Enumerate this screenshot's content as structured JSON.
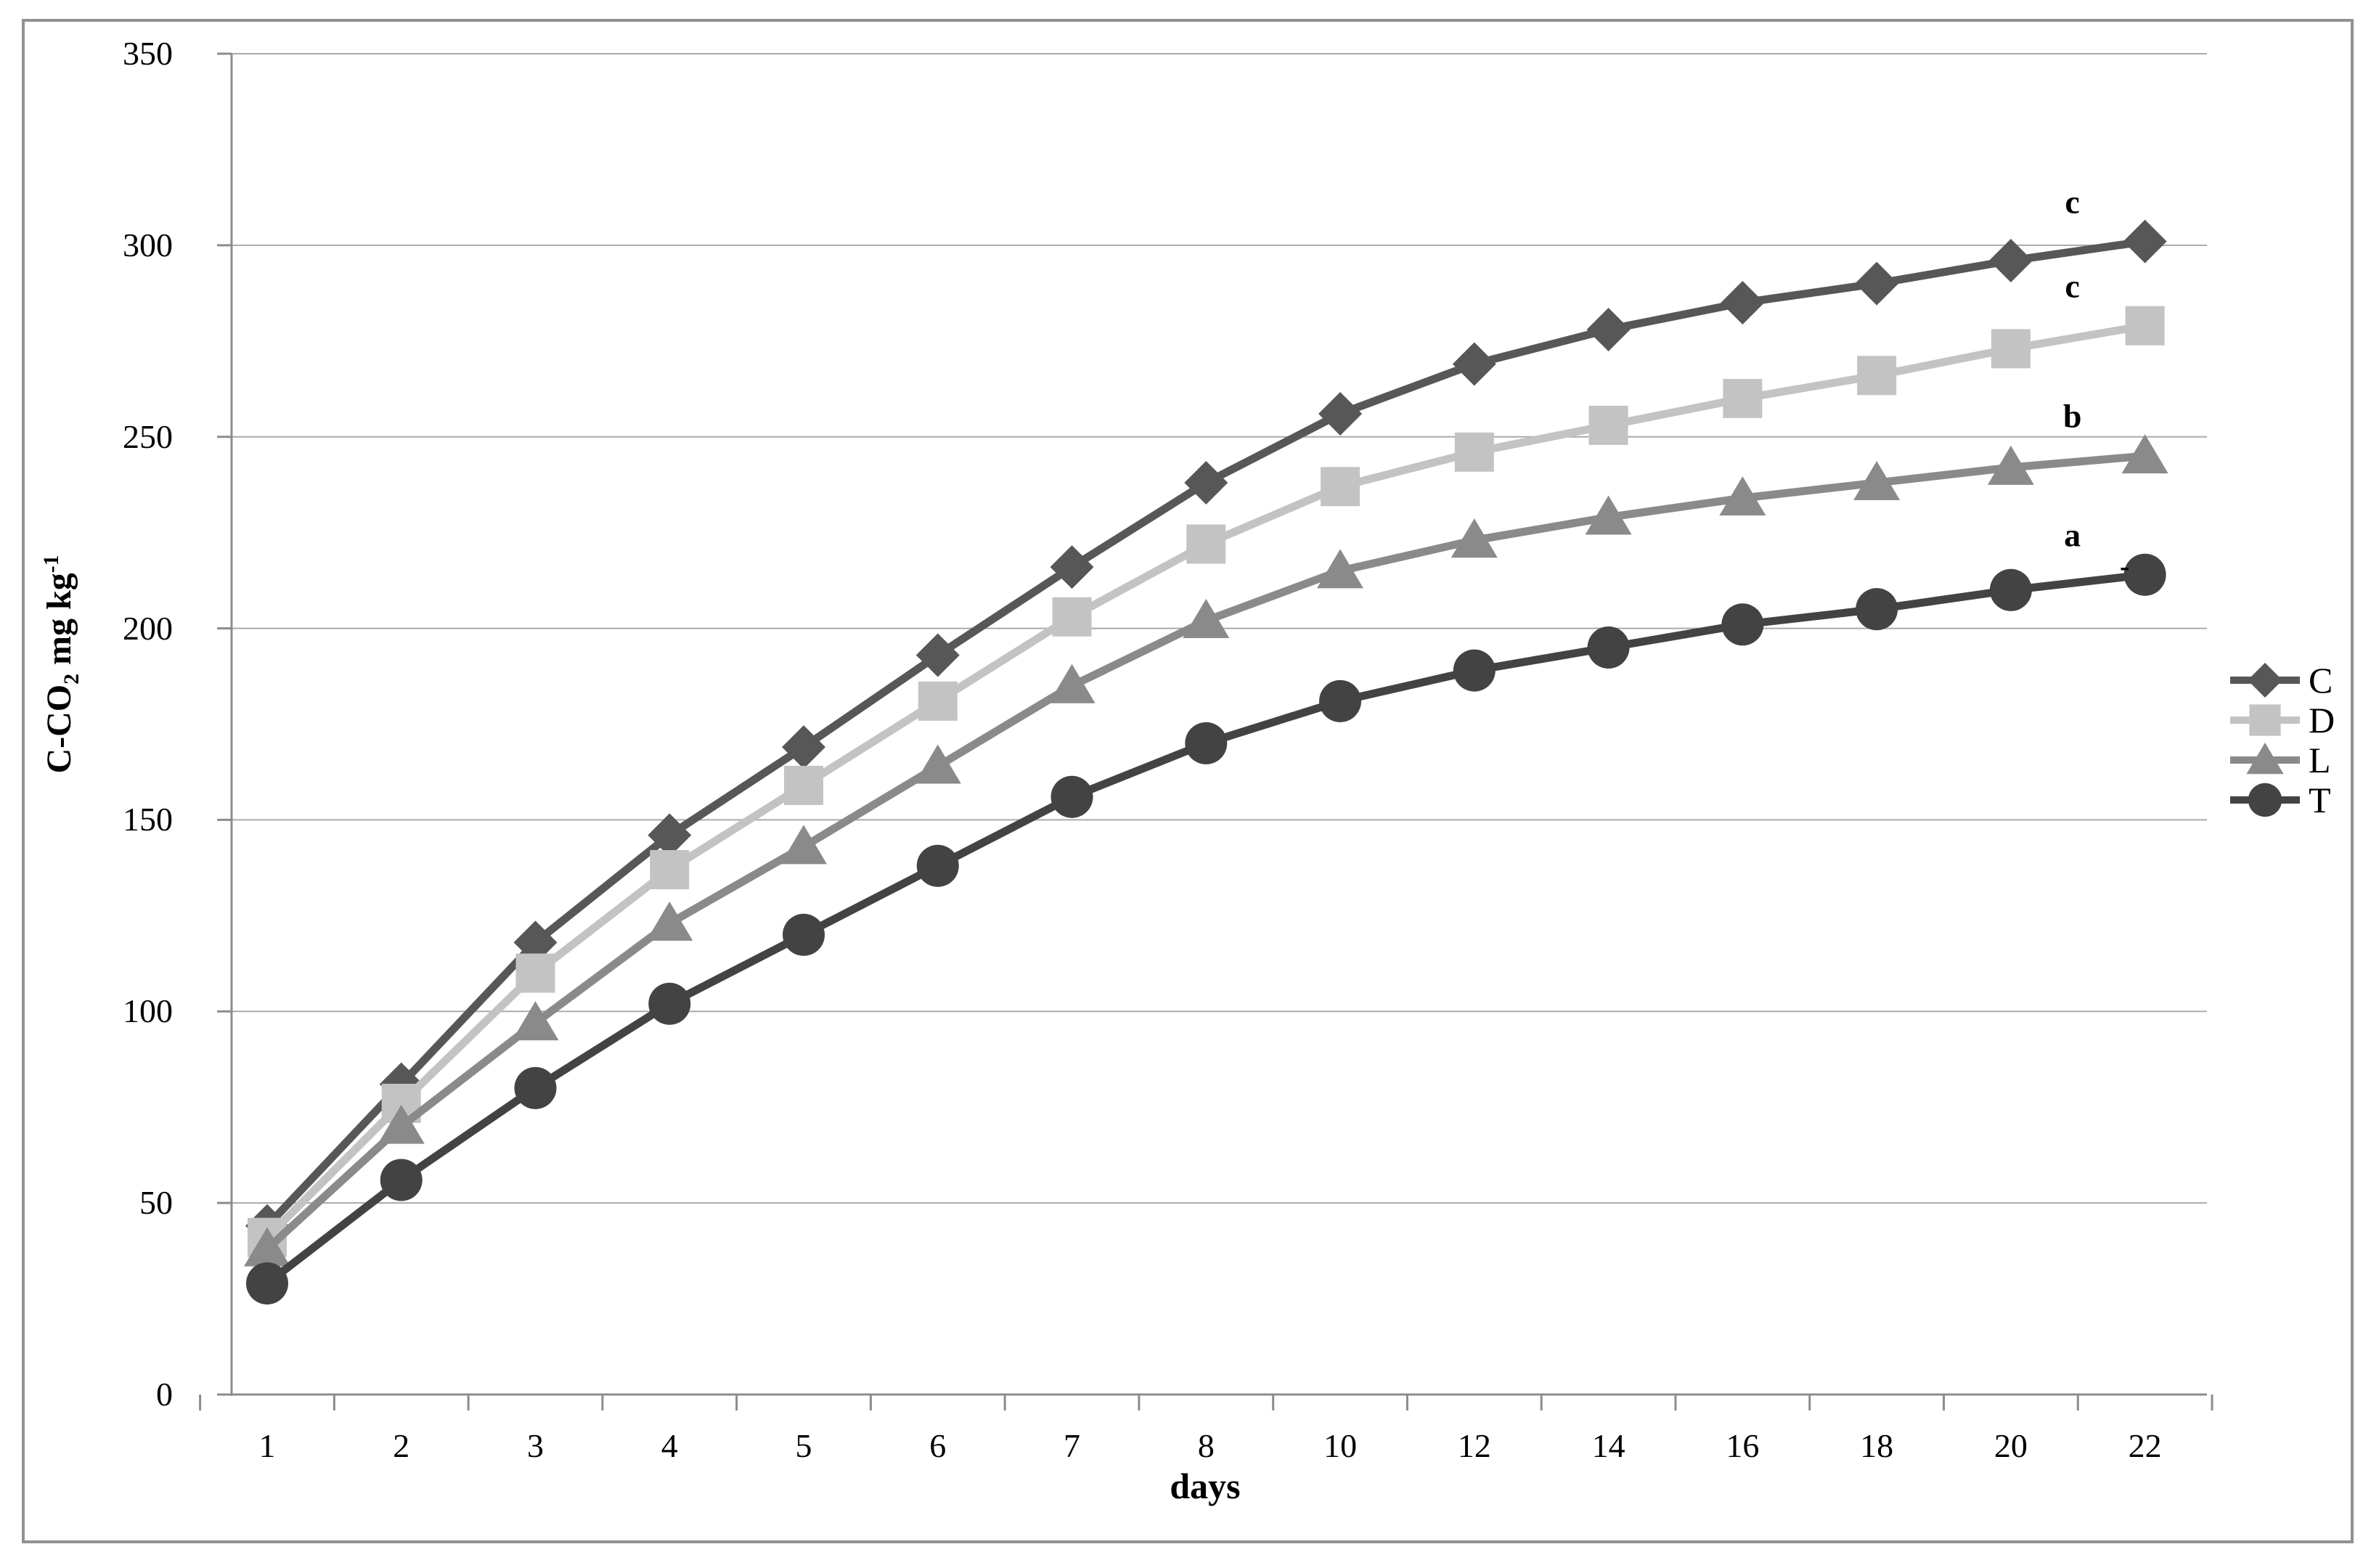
{
  "figure": {
    "background": "#ffffff",
    "frame_border_color": "#919191",
    "gridline_color": "#aaaaaa",
    "axis_color": "#8c8c8c",
    "text_color": "#000000"
  },
  "chart_data": {
    "type": "line",
    "title": "",
    "xlabel": "days",
    "ylabel": "C-CO2 mg kg-1",
    "ylabel_parts": {
      "main": "C-CO",
      "sub": "2",
      "mid": " mg kg",
      "sup": "-1"
    },
    "categories": [
      "1",
      "2",
      "3",
      "4",
      "5",
      "6",
      "7",
      "8",
      "10",
      "12",
      "14",
      "16",
      "18",
      "20",
      "22"
    ],
    "y_tick_labels": [
      "0",
      "50",
      "100",
      "150",
      "200",
      "250",
      "300",
      "350"
    ],
    "ylim": [
      0,
      350
    ],
    "y_tick_step": 50,
    "grid": true,
    "legend_position": "right-middle",
    "legend_entries": [
      "C",
      "D",
      "L",
      "T"
    ],
    "series": [
      {
        "name": "C",
        "marker": "diamond",
        "color": "#575757",
        "end_label": "c",
        "values": [
          44,
          81,
          118,
          146,
          169,
          193,
          216,
          238,
          256,
          269,
          278,
          285,
          290,
          296,
          301
        ]
      },
      {
        "name": "D",
        "marker": "square",
        "color": "#c3c3c3",
        "end_label": "c",
        "values": [
          41,
          76,
          110,
          137,
          159,
          181,
          203,
          222,
          237,
          246,
          253,
          260,
          266,
          273,
          279
        ]
      },
      {
        "name": "L",
        "marker": "triangle",
        "color": "#8a8a8a",
        "end_label": "b",
        "values": [
          38,
          70,
          97,
          123,
          143,
          164,
          185,
          202,
          215,
          223,
          229,
          234,
          238,
          242,
          245
        ]
      },
      {
        "name": "T",
        "marker": "circle",
        "color": "#434343",
        "end_label": "a",
        "values": [
          29,
          56,
          80,
          102,
          120,
          138,
          156,
          170,
          181,
          189,
          195,
          201,
          205,
          210,
          214
        ]
      }
    ],
    "extra_annotations": [
      {
        "text": "-",
        "series": "T",
        "dx": -28,
        "dy": -12
      }
    ]
  }
}
